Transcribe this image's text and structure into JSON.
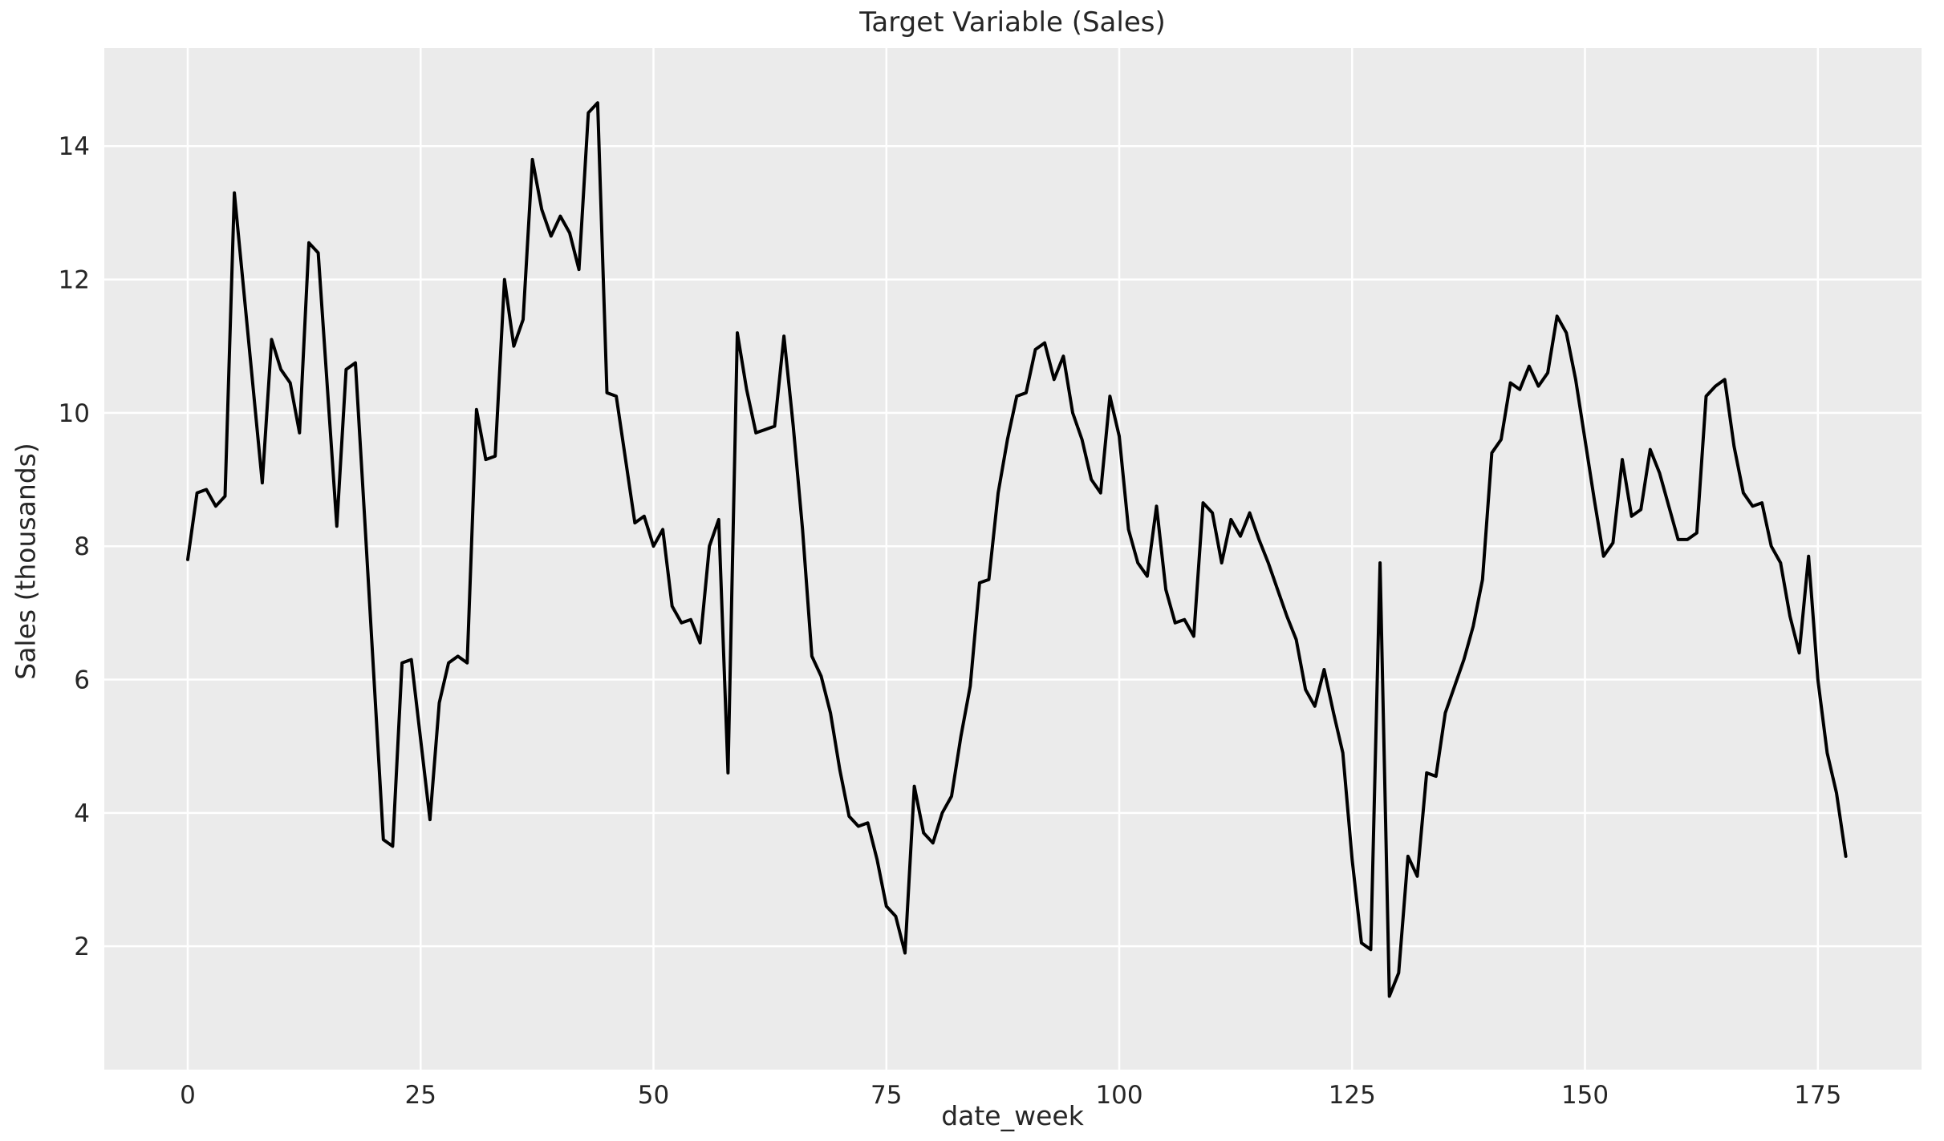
{
  "chart_data": {
    "type": "line",
    "title": "Target Variable (Sales)",
    "xlabel": "date_week",
    "ylabel": "Sales (thousands)",
    "x_start": 0,
    "x_step": 1,
    "values": [
      7.8,
      8.8,
      8.85,
      8.6,
      8.75,
      13.3,
      11.85,
      10.4,
      8.95,
      11.1,
      10.65,
      10.45,
      9.7,
      12.55,
      12.4,
      10.35,
      8.3,
      10.65,
      10.75,
      8.4,
      6.0,
      3.6,
      3.5,
      6.25,
      6.3,
      5.1,
      3.9,
      5.65,
      6.25,
      6.35,
      6.25,
      10.05,
      9.3,
      9.35,
      12.0,
      11.0,
      11.4,
      13.8,
      13.05,
      12.65,
      12.95,
      12.7,
      12.15,
      14.5,
      14.65,
      10.3,
      10.25,
      9.3,
      8.35,
      8.45,
      8.0,
      8.25,
      7.1,
      6.85,
      6.9,
      6.55,
      8.0,
      8.4,
      4.6,
      11.2,
      10.35,
      9.7,
      9.75,
      9.8,
      11.15,
      9.8,
      8.25,
      6.35,
      6.05,
      5.5,
      4.65,
      3.95,
      3.8,
      3.85,
      3.3,
      2.6,
      2.45,
      1.9,
      4.4,
      3.7,
      3.55,
      4.0,
      4.25,
      5.15,
      5.9,
      7.45,
      7.5,
      8.8,
      9.6,
      10.25,
      10.3,
      10.95,
      11.05,
      10.5,
      10.85,
      10.0,
      9.6,
      9.0,
      8.8,
      10.25,
      9.65,
      8.25,
      7.75,
      7.55,
      8.6,
      7.35,
      6.85,
      6.9,
      6.65,
      8.65,
      8.5,
      7.75,
      8.4,
      8.15,
      8.5,
      8.1,
      7.75,
      7.35,
      6.95,
      6.6,
      5.85,
      5.6,
      6.15,
      5.5,
      4.9,
      3.3,
      2.05,
      1.95,
      7.75,
      1.25,
      1.6,
      3.35,
      3.05,
      4.6,
      4.55,
      5.5,
      5.9,
      6.3,
      6.8,
      7.5,
      9.4,
      9.6,
      10.45,
      10.35,
      10.7,
      10.4,
      10.6,
      11.45,
      11.2,
      10.5,
      9.6,
      8.7,
      7.85,
      8.05,
      9.3,
      8.45,
      8.55,
      9.45,
      9.1,
      8.6,
      8.1,
      8.1,
      8.2,
      10.25,
      10.4,
      10.5,
      9.5,
      8.8,
      8.6,
      8.65,
      8.0,
      7.75,
      6.95,
      6.4,
      7.85,
      6.0,
      4.9,
      4.3,
      3.35
    ],
    "xticks": [
      0,
      25,
      50,
      75,
      100,
      125,
      150,
      175
    ],
    "yticks": [
      2,
      4,
      6,
      8,
      10,
      12,
      14
    ],
    "xlim": [
      -8.96,
      186.13
    ],
    "ylim": [
      0.15,
      15.47
    ],
    "grid": true,
    "legend_position": "none",
    "line_width": 4,
    "colors": {
      "line": "#000000",
      "plot_background": "#EBEBEB",
      "figure_background": "#FFFFFF",
      "gridline": "#FFFFFF",
      "text": "#262626"
    }
  }
}
